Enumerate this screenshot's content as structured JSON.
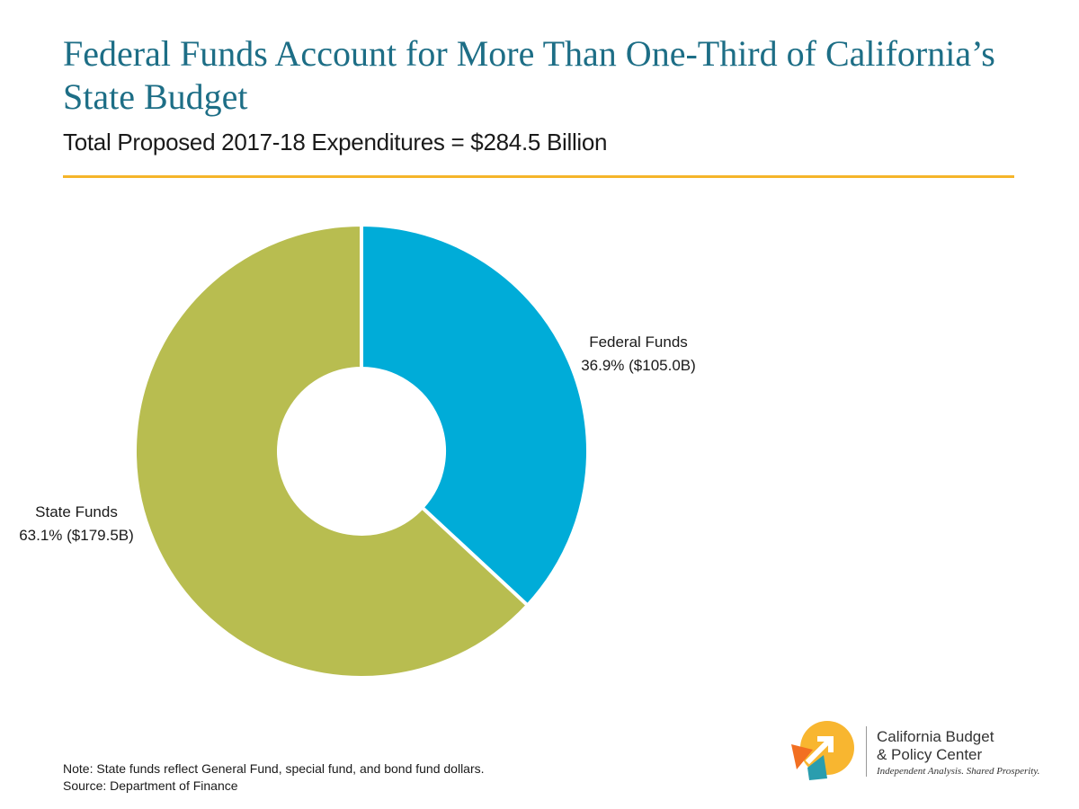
{
  "chart_data": {
    "type": "pie",
    "title": "Federal Funds Account for More Than One-Third of California’s State Budget",
    "subtitle": "Total Proposed 2017-18 Expenditures = $284.5 Billion",
    "donut": true,
    "slices": [
      {
        "name": "Federal Funds",
        "value": 105.0,
        "percent": 36.9,
        "value_label": "36.9% ($105.0B)",
        "color": "#00acd8"
      },
      {
        "name": "State Funds",
        "value": 179.5,
        "percent": 63.1,
        "value_label": "63.1% ($179.5B)",
        "color": "#b8bd50"
      }
    ],
    "total_label": "$284.5 Billion"
  },
  "notes": {
    "note": "Note: State funds reflect General Fund, special fund, and bond fund dollars.",
    "source": "Source: Department of Finance"
  },
  "logo": {
    "line1": "California Budget",
    "line2": "& Policy Center",
    "tagline": "Independent Analysis. Shared Prosperity."
  },
  "colors": {
    "title": "#1d6e86",
    "rule": "#f5b52a",
    "logo_orange": "#f26f21",
    "logo_yellow": "#f8b630",
    "logo_teal": "#2a9dae"
  }
}
